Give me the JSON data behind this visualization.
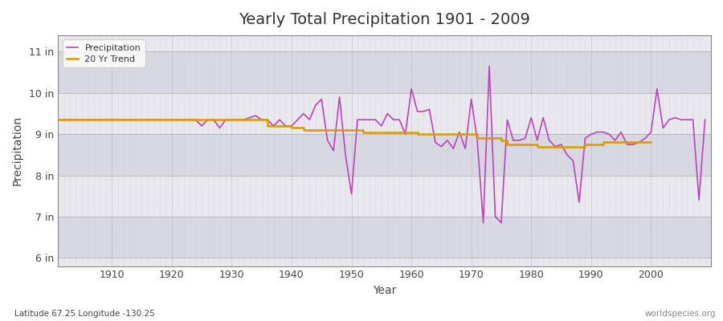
{
  "title": "Yearly Total Precipitation 1901 - 2009",
  "xlabel": "Year",
  "ylabel": "Precipitation",
  "subtitle": "Latitude 67.25 Longitude -130.25",
  "watermark": "worldspecies.org",
  "background_color": "#ffffff",
  "plot_background_color": "#e8e8ec",
  "band_color_light": "#e0e0e8",
  "band_color_dark": "#d0d0dc",
  "ylim": [
    5.8,
    11.4
  ],
  "yticks": [
    6,
    7,
    8,
    9,
    10,
    11
  ],
  "ytick_labels": [
    "6 in",
    "7 in",
    "8 in",
    "9 in",
    "10 in",
    "11 in"
  ],
  "xlim": [
    1901,
    2010
  ],
  "xticks": [
    1910,
    1920,
    1930,
    1940,
    1950,
    1960,
    1970,
    1980,
    1990,
    2000
  ],
  "precip_color": "#bb44bb",
  "trend_color": "#dd9900",
  "precip_linewidth": 1.2,
  "trend_linewidth": 1.8,
  "years": [
    1901,
    1902,
    1903,
    1904,
    1905,
    1906,
    1907,
    1908,
    1909,
    1910,
    1911,
    1912,
    1913,
    1914,
    1915,
    1916,
    1917,
    1918,
    1919,
    1920,
    1921,
    1922,
    1923,
    1924,
    1925,
    1926,
    1927,
    1928,
    1929,
    1930,
    1931,
    1932,
    1933,
    1934,
    1935,
    1936,
    1937,
    1938,
    1939,
    1940,
    1941,
    1942,
    1943,
    1944,
    1945,
    1946,
    1947,
    1948,
    1949,
    1950,
    1951,
    1952,
    1953,
    1954,
    1955,
    1956,
    1957,
    1958,
    1959,
    1960,
    1961,
    1962,
    1963,
    1964,
    1965,
    1966,
    1967,
    1968,
    1969,
    1970,
    1971,
    1972,
    1973,
    1974,
    1975,
    1976,
    1977,
    1978,
    1979,
    1980,
    1981,
    1982,
    1983,
    1984,
    1985,
    1986,
    1987,
    1988,
    1989,
    1990,
    1991,
    1992,
    1993,
    1994,
    1995,
    1996,
    1997,
    1998,
    1999,
    2000,
    2001,
    2002,
    2003,
    2004,
    2005,
    2006,
    2007,
    2008,
    2009
  ],
  "precip": [
    9.35,
    9.35,
    9.35,
    9.35,
    9.35,
    9.35,
    9.35,
    9.35,
    9.35,
    9.35,
    9.35,
    9.35,
    9.35,
    9.35,
    9.35,
    9.35,
    9.35,
    9.35,
    9.35,
    9.35,
    9.35,
    9.35,
    9.35,
    9.35,
    9.2,
    9.35,
    9.35,
    9.15,
    9.35,
    9.35,
    9.35,
    9.35,
    9.4,
    9.45,
    9.35,
    9.35,
    9.2,
    9.35,
    9.2,
    9.2,
    9.35,
    9.5,
    9.35,
    9.7,
    9.85,
    8.85,
    8.6,
    9.9,
    8.5,
    7.55,
    9.35,
    9.35,
    9.35,
    9.35,
    9.2,
    9.5,
    9.35,
    9.35,
    9.0,
    10.1,
    9.55,
    9.55,
    9.6,
    8.8,
    8.7,
    8.85,
    8.65,
    9.05,
    8.65,
    9.85,
    8.85,
    6.85,
    10.65,
    7.0,
    6.85,
    9.35,
    8.85,
    8.85,
    8.9,
    9.4,
    8.85,
    9.4,
    8.85,
    8.7,
    8.75,
    8.5,
    8.35,
    7.35,
    8.9,
    9.0,
    9.05,
    9.05,
    9.0,
    8.85,
    9.05,
    8.75,
    8.75,
    8.8,
    8.9,
    9.05,
    10.1,
    9.15,
    9.35,
    9.4,
    9.35,
    9.35,
    9.35,
    7.4,
    9.35
  ],
  "trend": [
    9.35,
    9.35,
    9.35,
    9.35,
    9.35,
    9.35,
    9.35,
    9.35,
    9.35,
    9.35,
    9.35,
    9.35,
    9.35,
    9.35,
    9.35,
    9.35,
    9.35,
    9.35,
    9.35,
    9.35,
    9.35,
    9.35,
    9.35,
    9.35,
    9.35,
    9.35,
    9.35,
    9.35,
    9.35,
    9.35,
    9.35,
    9.35,
    9.35,
    9.35,
    9.35,
    9.2,
    9.2,
    9.2,
    9.2,
    9.15,
    9.15,
    9.1,
    9.1,
    9.1,
    9.1,
    9.1,
    9.1,
    9.1,
    9.1,
    9.1,
    9.1,
    9.05,
    9.05,
    9.05,
    9.05,
    9.05,
    9.05,
    9.05,
    9.05,
    9.05,
    9.0,
    9.0,
    9.0,
    9.0,
    9.0,
    9.0,
    9.0,
    9.0,
    9.0,
    9.0,
    8.9,
    8.9,
    8.9,
    8.9,
    8.85,
    8.75,
    8.75,
    8.75,
    8.75,
    8.75,
    8.7,
    8.7,
    8.7,
    8.7,
    8.7,
    8.7,
    8.7,
    8.7,
    8.75,
    8.75,
    8.75,
    8.8,
    8.8,
    8.8,
    8.8,
    8.8,
    8.8,
    8.8,
    8.8,
    8.8,
    null,
    null,
    null,
    null,
    null,
    null,
    null,
    null,
    null
  ]
}
